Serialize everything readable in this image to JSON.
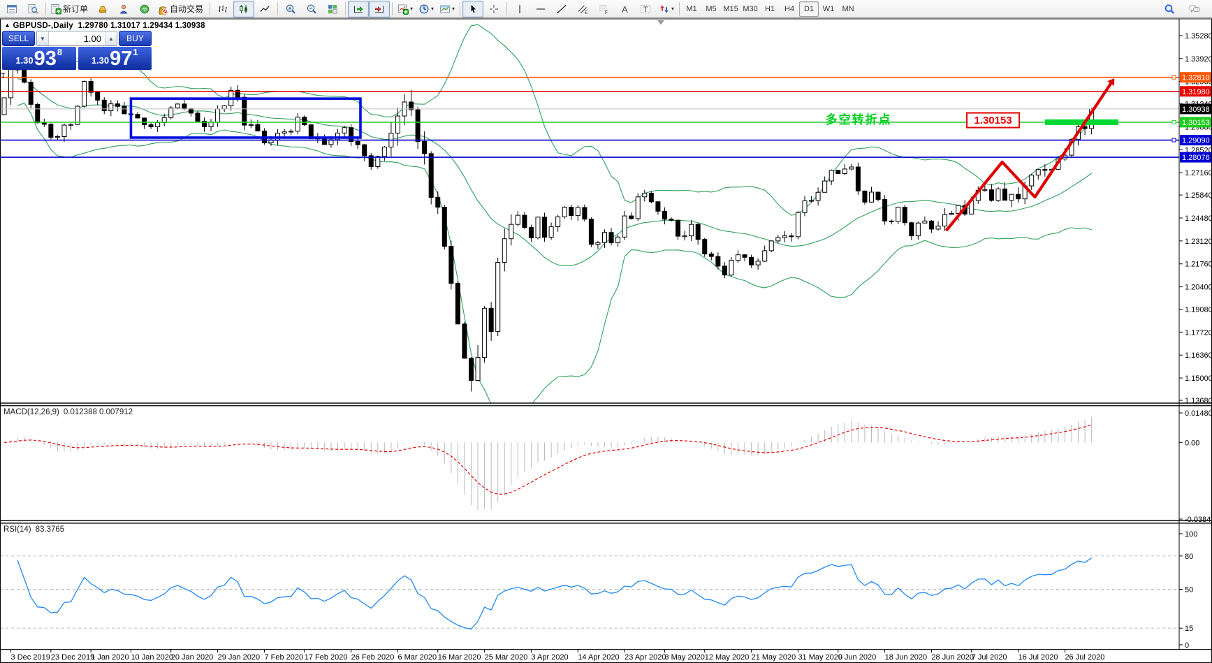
{
  "header": {
    "arrow": "▲",
    "symbol": "GBPUSD-,Daily",
    "ohlc": "1.29780 1.31017 1.29434 1.30938"
  },
  "misc": {
    "t_fragment": "T"
  },
  "one_click": {
    "sell_label": "SELL",
    "buy_label": "BUY",
    "volume": "1.00",
    "spin_down": "▼",
    "spin_up": "▲",
    "sell_price_small": "1.30",
    "sell_price_big": "93",
    "sell_price_pip": "8",
    "buy_price_small": "1.30",
    "buy_price_big": "97",
    "buy_price_pip": "1"
  },
  "toolbar": {
    "groups": [
      {
        "items": [
          {
            "name": "market-watch-icon",
            "glyph": "win"
          },
          {
            "name": "data-window-icon",
            "glyph": "magdoc"
          }
        ]
      },
      {
        "items": [
          {
            "name": "new-order-button",
            "glyph": "docplus",
            "label": "新订单"
          },
          {
            "name": "indicator-list-icon",
            "glyph": "gold"
          },
          {
            "name": "virtual-hosting-icon",
            "glyph": "person"
          },
          {
            "name": "signals-icon",
            "glyph": "signal"
          },
          {
            "name": "auto-trading-button",
            "glyph": "pot",
            "label": "自动交易"
          }
        ]
      },
      {
        "items": [
          {
            "name": "bar-chart-icon",
            "glyph": "bars"
          },
          {
            "name": "candlestick-chart-icon",
            "glyph": "candles",
            "pressed": true
          },
          {
            "name": "line-chart-icon",
            "glyph": "linec"
          }
        ]
      },
      {
        "items": [
          {
            "name": "zoom-in-icon",
            "glyph": "zin"
          },
          {
            "name": "zoom-out-icon",
            "glyph": "zout"
          },
          {
            "name": "tile-windows-icon",
            "glyph": "tiles"
          }
        ]
      },
      {
        "items": [
          {
            "name": "auto-scroll-icon",
            "glyph": "scroll",
            "pressed": true
          },
          {
            "name": "chart-shift-icon",
            "glyph": "shift",
            "pressed": true
          }
        ]
      },
      {
        "items": [
          {
            "name": "indicators-add-icon",
            "glyph": "ind",
            "caret": true
          },
          {
            "name": "periods-icon",
            "glyph": "clock",
            "caret": true
          },
          {
            "name": "templates-icon",
            "glyph": "tpl",
            "caret": true
          }
        ]
      },
      {
        "items": [
          {
            "name": "cursor-icon",
            "glyph": "cursor",
            "pressed": true
          },
          {
            "name": "crosshair-icon",
            "glyph": "cross"
          }
        ]
      },
      {
        "items": [
          {
            "name": "vertical-line-icon",
            "glyph": "vline"
          },
          {
            "name": "horizontal-line-icon",
            "glyph": "hline"
          },
          {
            "name": "trendline-icon",
            "glyph": "tline"
          },
          {
            "name": "channel-icon",
            "glyph": "channel"
          },
          {
            "name": "fibonacci-icon",
            "glyph": "fibo"
          },
          {
            "name": "text-icon",
            "glyph": "textA"
          },
          {
            "name": "label-icon",
            "glyph": "labelT"
          },
          {
            "name": "arrows-icon",
            "glyph": "arrows",
            "caret": true
          }
        ]
      },
      {
        "timeframes": [
          {
            "label": "M1"
          },
          {
            "label": "M5"
          },
          {
            "label": "M15"
          },
          {
            "label": "M30"
          },
          {
            "label": "H1"
          },
          {
            "label": "H4"
          },
          {
            "label": "D1",
            "pressed": true
          },
          {
            "label": "W1"
          },
          {
            "label": "MN"
          }
        ]
      }
    ],
    "right_icons": [
      {
        "name": "search-icon",
        "glyph": "search"
      },
      {
        "name": "chat-icon",
        "glyph": "chat"
      }
    ]
  },
  "chart_data": {
    "type": "candlestick",
    "title": "GBPUSD-,Daily",
    "last_candle": {
      "open": 1.2978,
      "high": 1.31017,
      "low": 1.29434,
      "close": 1.30938
    },
    "closes": [
      1.316,
      1.3328,
      1.333,
      1.3252,
      1.3121,
      1.3012,
      1.3003,
      1.2926,
      1.293,
      1.2998,
      1.3002,
      1.311,
      1.3257,
      1.3192,
      1.3146,
      1.3083,
      1.3124,
      1.3109,
      1.3065,
      1.3062,
      1.304,
      1.3,
      1.2988,
      1.3013,
      1.3043,
      1.31,
      1.3123,
      1.3095,
      1.3069,
      1.3021,
      1.2988,
      1.3017,
      1.3094,
      1.3112,
      1.3204,
      1.3163,
      1.2998,
      1.3001,
      1.2963,
      1.2893,
      1.291,
      1.295,
      1.2958,
      1.2962,
      1.3045,
      1.3,
      1.2918,
      1.2922,
      1.2883,
      1.2912,
      1.2951,
      1.2983,
      1.2901,
      1.2882,
      1.2817,
      1.2752,
      1.2812,
      1.2868,
      1.295,
      1.3052,
      1.3135,
      1.3089,
      1.2901,
      1.2829,
      1.257,
      1.2512,
      1.228,
      1.2061,
      1.182,
      1.1617,
      1.1486,
      1.1622,
      1.1913,
      1.1775,
      1.2185,
      1.2325,
      1.241,
      1.2464,
      1.2392,
      1.233,
      1.2453,
      1.2334,
      1.2396,
      1.2455,
      1.2512,
      1.2462,
      1.251,
      1.2441,
      1.2292,
      1.2302,
      1.2362,
      1.2301,
      1.2335,
      1.246,
      1.2444,
      1.2573,
      1.2595,
      1.2544,
      1.2488,
      1.2441,
      1.2435,
      1.234,
      1.2342,
      1.241,
      1.2321,
      1.2235,
      1.222,
      1.2163,
      1.211,
      1.2197,
      1.223,
      1.2215,
      1.217,
      1.2192,
      1.2254,
      1.2312,
      1.2332,
      1.2342,
      1.2337,
      1.248,
      1.255,
      1.2552,
      1.26,
      1.2667,
      1.273,
      1.2711,
      1.2738,
      1.275,
      1.2608,
      1.2542,
      1.2601,
      1.2558,
      1.243,
      1.2426,
      1.2512,
      1.242,
      1.2342,
      1.2418,
      1.243,
      1.2382,
      1.24,
      1.2468,
      1.2475,
      1.2522,
      1.2471,
      1.2551,
      1.2612,
      1.2615,
      1.2552,
      1.262,
      1.2553,
      1.2588,
      1.2561,
      1.2638,
      1.2702,
      1.2735,
      1.2731,
      1.2736,
      1.2797,
      1.282,
      1.2913,
      1.2988,
      1.2978,
      1.30938
    ],
    "x_labels": [
      {
        "t": "3 Dec 2019",
        "i": 1
      },
      {
        "t": "23 Dec 2019",
        "i": 7
      },
      {
        "t": "1 Jan 2020",
        "i": 13
      },
      {
        "t": "10 Jan 2020",
        "i": 19
      },
      {
        "t": "20 Jan 2020",
        "i": 25
      },
      {
        "t": "29 Jan 2020",
        "i": 32
      },
      {
        "t": "7 Feb 2020",
        "i": 39
      },
      {
        "t": "17 Feb 2020",
        "i": 45
      },
      {
        "t": "26 Feb 2020",
        "i": 52
      },
      {
        "t": "6 Mar 2020",
        "i": 59
      },
      {
        "t": "16 Mar 2020",
        "i": 65
      },
      {
        "t": "25 Mar 2020",
        "i": 72
      },
      {
        "t": "3 Apr 2020",
        "i": 79
      },
      {
        "t": "14 Apr 2020",
        "i": 86
      },
      {
        "t": "23 Apr 2020",
        "i": 93
      },
      {
        "t": "3 May 2020",
        "i": 99
      },
      {
        "t": "12 May 2020",
        "i": 105
      },
      {
        "t": "21 May 2020",
        "i": 112
      },
      {
        "t": "31 May 2020",
        "i": 119
      },
      {
        "t": "9 Jun 2020",
        "i": 125
      },
      {
        "t": "18 Jun 2020",
        "i": 132
      },
      {
        "t": "28 Jun 2020",
        "i": 139
      },
      {
        "t": "7 Jul 2020",
        "i": 145
      },
      {
        "t": "16 Jul 2020",
        "i": 152
      },
      {
        "t": "26 Jul 2020",
        "i": 159
      }
    ],
    "price_axis": {
      "top": 1.36232,
      "bottom": 1.13514,
      "ticks": [
        {
          "v": 1.3528,
          "t": "1.35280"
        },
        {
          "v": 1.3392,
          "t": "1.33920"
        },
        {
          "v": 1.3256,
          "t": "1.32560"
        },
        {
          "v": 1.3124,
          "t": "1.31240"
        },
        {
          "v": 1.2988,
          "t": "1.29880"
        },
        {
          "v": 1.2852,
          "t": "1.28520"
        },
        {
          "v": 1.2716,
          "t": "1.27160"
        },
        {
          "v": 1.2584,
          "t": "1.25840"
        },
        {
          "v": 1.2448,
          "t": "1.24480"
        },
        {
          "v": 1.2312,
          "t": "1.23120"
        },
        {
          "v": 1.2176,
          "t": "1.21760"
        },
        {
          "v": 1.204,
          "t": "1.20400"
        },
        {
          "v": 1.1908,
          "t": "1.19080"
        },
        {
          "v": 1.1772,
          "t": "1.17720"
        },
        {
          "v": 1.1636,
          "t": "1.16360"
        },
        {
          "v": 1.15,
          "t": "1.15000"
        },
        {
          "v": 1.1368,
          "t": "1.13680"
        }
      ]
    },
    "badges": [
      {
        "label": "1.32810",
        "price": 1.3281,
        "color": "#ff5500"
      },
      {
        "label": "1.31980",
        "price": 1.3198,
        "color": "#e60000"
      },
      {
        "label": "1.30938",
        "price": 1.30938,
        "color": "#000000"
      },
      {
        "label": "1.30153",
        "price": 1.30153,
        "color": "#1fcc1f"
      },
      {
        "label": "1.29090",
        "price": 1.2909,
        "color": "#0000d2"
      },
      {
        "label": "1.28076",
        "price": 1.28076,
        "color": "#0000d2"
      }
    ],
    "hlines": [
      {
        "price": 1.3281,
        "color": "#ff5500",
        "width": 1.6,
        "handle": true
      },
      {
        "price": 1.3198,
        "color": "#e60000",
        "width": 1.6,
        "handle": false
      },
      {
        "price": 1.30938,
        "color": "#c0c0c0",
        "width": 1.0,
        "handle": false
      },
      {
        "price": 1.30153,
        "color": "#2ecc2e",
        "width": 1.6,
        "handle": true
      },
      {
        "price": 1.2909,
        "color": "#0000d2",
        "width": 1.6,
        "handle": true
      },
      {
        "price": 1.28076,
        "color": "#0000d2",
        "width": 1.6,
        "handle": false
      }
    ],
    "rectangle": {
      "from_i": 19,
      "to_i": 53.4,
      "top": 1.3155,
      "bottom": 1.2924,
      "color": "#0010dd",
      "stroke": 3.6
    },
    "highlight": {
      "price": 1.30153,
      "from_i": 156,
      "to_i": 167,
      "thickness": 8,
      "color": "#00d832"
    },
    "zigzag": {
      "color": "#dd0000",
      "width": 4.2,
      "points": [
        {
          "i": 141.2,
          "p": 1.2373
        },
        {
          "i": 149.6,
          "p": 1.2779
        },
        {
          "i": 154.5,
          "p": 1.2572
        },
        {
          "i": 166.4,
          "p": 1.3275
        }
      ]
    },
    "annotation": {
      "text": "多空转折点",
      "i": 123.1,
      "p": 1.3027,
      "color": "#00cf1f"
    },
    "price_flag": {
      "text": "1.30153",
      "i": 144.3,
      "color": "#e60000"
    },
    "bollinger": {
      "period": 20,
      "deviation": 2,
      "color": "#2fa05c"
    },
    "macd": {
      "label": "MACD(12,26,9)",
      "values": "0.012388 0.007912",
      "fast": 12,
      "slow": 26,
      "signal": 9,
      "top": 0.01796,
      "bottom": -0.03912,
      "ticks": [
        {
          "v": 0.014807,
          "t": "0.014807"
        },
        {
          "v": 0,
          "t": "0.00"
        },
        {
          "v": -0.038415,
          "t": "-0.038415"
        }
      ],
      "hist_color": "#b9b9b9",
      "signal_color": "#e60000"
    },
    "rsi": {
      "label": "RSI(14)",
      "value": "83.3765",
      "period": 14,
      "top": 108.8,
      "bottom": -3.77,
      "ticks": [
        {
          "v": 100,
          "t": "100"
        },
        {
          "v": 80,
          "t": "80"
        },
        {
          "v": 50,
          "t": "50"
        },
        {
          "v": 15,
          "t": "15"
        },
        {
          "v": 0,
          "t": "0"
        }
      ],
      "levels": [
        80,
        50,
        15
      ],
      "line_color": "#2188ee",
      "level_color": "#b8b8b8"
    },
    "candle_up_color": "#ffffff",
    "candle_down_color": "#000000",
    "candle_border": "#000000"
  }
}
